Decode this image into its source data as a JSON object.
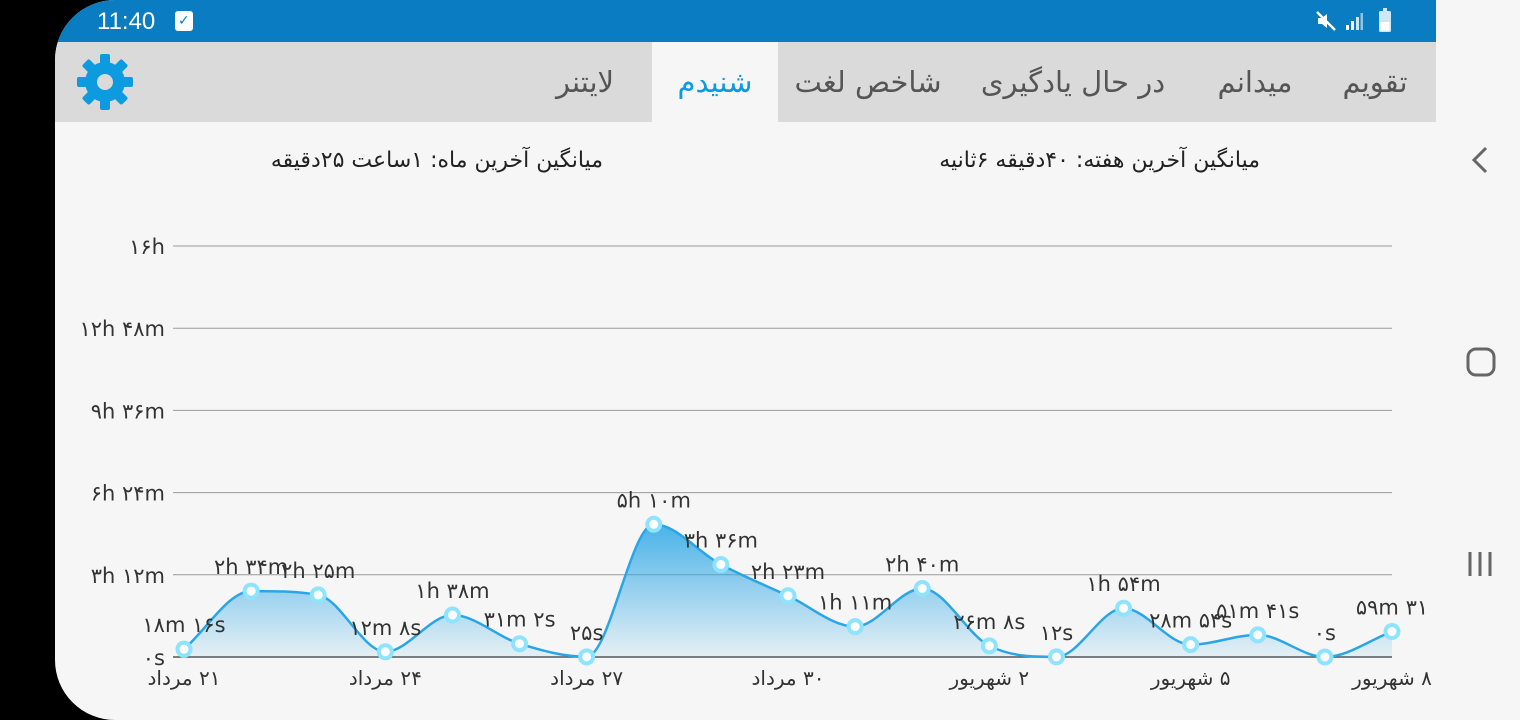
{
  "status_bar": {
    "time": "11:40",
    "icons": [
      "calendar-check-icon",
      "mute-icon",
      "signal-icon",
      "battery-icon"
    ]
  },
  "tabs": [
    {
      "label": "تقویم",
      "active": false
    },
    {
      "label": "میدانم",
      "active": false
    },
    {
      "label": "در حال یادگیری",
      "active": false
    },
    {
      "label": "شاخص لغت",
      "active": false
    },
    {
      "label": "شنیدم",
      "active": true
    },
    {
      "label": "لایتنر",
      "active": false
    }
  ],
  "settings_icon": "gear-icon",
  "averages": {
    "week": "میانگین آخرین هفته: ۴۰دقیقه  ۶ثانیه",
    "month": "میانگین آخرین ماه: ۱ساعت  ۲۵دقیقه"
  },
  "colors": {
    "accent": "#0d9be0",
    "status_bar": "#0a7cc2",
    "line": "#2aa6e6",
    "point": "#8ee4ff"
  },
  "nav_bar": {
    "icons": [
      "back-icon",
      "home-icon",
      "recents-icon"
    ]
  },
  "chart_data": {
    "type": "area",
    "grid": true,
    "ylim": [
      0,
      960
    ],
    "y_ticks": [
      {
        "value": 0,
        "label": "۰s"
      },
      {
        "value": 192,
        "label": "۳h ۱۲m"
      },
      {
        "value": 384,
        "label": "۶h ۲۴m"
      },
      {
        "value": 576,
        "label": "۹h ۳۶m"
      },
      {
        "value": 768,
        "label": "۱۲h ۴۸m"
      },
      {
        "value": 960,
        "label": "۱۶h"
      }
    ],
    "x_ticks": [
      "۲۱ مرداد",
      "۲۴ مرداد",
      "۲۷ مرداد",
      "۳۰ مرداد",
      "۲ شهریور",
      "۵ شهریور",
      "۸ شهریور"
    ],
    "series": [
      {
        "values": [
          18.27,
          154,
          145,
          12.13,
          98,
          31.03,
          0.42,
          310,
          216,
          143,
          71,
          160,
          26.13,
          0.2,
          114,
          28.9,
          51.68,
          0,
          59.52
        ],
        "labels": [
          "۱۸m ۱۶s",
          "۲h ۳۴m",
          "۲h ۲۵m",
          "۱۲m ۸s",
          "۱h ۳۸m",
          "۳۱m ۲s",
          "۲۵s",
          "۵h ۱۰m",
          "۳h ۳۶m",
          "۲h ۲۳m",
          "۱h ۱۱m",
          "۲h ۴۰m",
          "۲۶m ۸s",
          "۱۲s",
          "۱h ۵۴m",
          "۲۸m ۵۴s",
          "۵۱m ۴۱s",
          "۰s",
          "۵۹m ۳۱"
        ]
      }
    ]
  }
}
